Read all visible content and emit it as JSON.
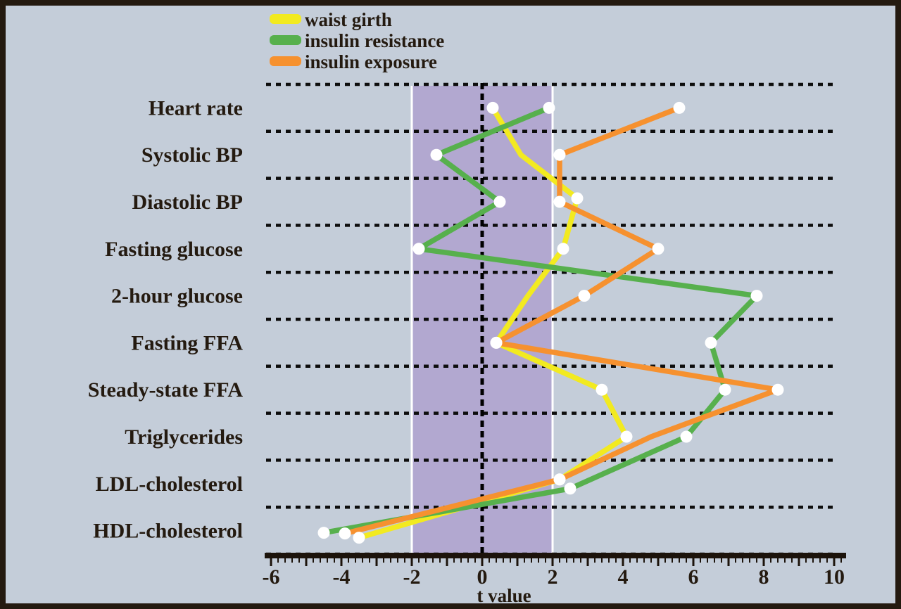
{
  "chart_data": {
    "type": "line",
    "orientation": "horizontal-categories",
    "title": "",
    "xlabel": "t value",
    "x_axis": {
      "min": -6,
      "max": 10,
      "tick_values": [
        -6,
        -4,
        -2,
        0,
        2,
        4,
        6,
        8,
        10
      ],
      "tick_labels": [
        "-6",
        "-4",
        "-2",
        "0",
        "2",
        "4",
        "6",
        "8",
        "10"
      ],
      "minor_tick_step": 0.2,
      "zero_line": true
    },
    "categories": [
      "Heart rate",
      "Systolic BP",
      "Diastolic BP",
      "Fasting glucose",
      "2-hour glucose",
      "Fasting FFA",
      "Steady-state FFA",
      "Triglycerides",
      "LDL-cholesterol",
      "HDL-cholesterol"
    ],
    "significance_band": {
      "from": -2,
      "to": 2
    },
    "legend_position": "top-left-above-plot",
    "grid": "dotted-horizontal-separators",
    "series": [
      {
        "name": "waist girth",
        "color": "#f2ea20",
        "values": [
          0.3,
          1.1,
          2.7,
          2.3,
          1.3,
          0.4,
          3.4,
          4.1,
          2.2,
          -3.5
        ],
        "hidden_markers": [
          1,
          4
        ],
        "marker_dy": {
          "2": -5,
          "8": -6,
          "9": 10
        }
      },
      {
        "name": "insulin resistance",
        "color": "#57b04d",
        "values": [
          1.9,
          -1.3,
          0.5,
          -1.8,
          7.8,
          6.5,
          6.9,
          5.8,
          2.5,
          -4.5
        ],
        "hidden_markers": [],
        "marker_dy": {
          "8": 7,
          "9": 3
        }
      },
      {
        "name": "insulin exposure",
        "color": "#f6912f",
        "values": [
          5.6,
          2.2,
          2.2,
          5.0,
          2.9,
          0.4,
          8.4,
          4.8,
          2.2,
          -3.9
        ],
        "hidden_markers": [
          7
        ],
        "marker_dy": {
          "8": -6,
          "9": 4
        }
      }
    ]
  },
  "legend": {
    "items": [
      {
        "label": "waist girth",
        "color": "#f2ea20"
      },
      {
        "label": "insulin resistance",
        "color": "#57b04d"
      },
      {
        "label": "insulin exposure",
        "color": "#f6912f"
      }
    ]
  },
  "colors": {
    "background": "#c4cdd9",
    "band": "#b2a8d0",
    "band_edge": "#ffffff",
    "frame": "#241a10",
    "text": "#241a10",
    "dotted_line": "#0d0d0d",
    "axis_bar": "#1c130b",
    "marker_fill": "#ffffff"
  }
}
